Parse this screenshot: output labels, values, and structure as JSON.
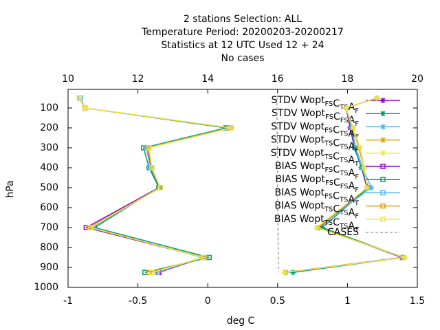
{
  "chart_data": {
    "type": "line",
    "title": [
      "2 stations Selection: ALL",
      "Temperature  Period: 20200203-20200217",
      "Statistics at 12 UTC  Used  12 + 24",
      "No cases"
    ],
    "xlabel": "deg C",
    "ylabel": "hPa",
    "xlim": [
      -1,
      1.5
    ],
    "xticks": [
      -1,
      -0.5,
      0,
      0.5,
      1,
      1.5
    ],
    "x2lim": [
      10,
      20
    ],
    "x2ticks": [
      10,
      12,
      14,
      16,
      18,
      20
    ],
    "ylim": [
      1000,
      0
    ],
    "yticks": [
      100,
      200,
      300,
      400,
      500,
      600,
      700,
      800,
      900,
      1000
    ],
    "levels": [
      50,
      100,
      200,
      300,
      400,
      500,
      700,
      850,
      925
    ],
    "series": [
      {
        "name": "STDV Wopt_{FS}C_{TS}A_{F}",
        "color": "#9400d3",
        "marker": "star",
        "values": [
          1.21,
          0.99,
          1.02,
          1.05,
          1.1,
          1.14,
          0.8,
          1.39,
          0.55
        ]
      },
      {
        "name": "STDV Wopt_{FS}C_{FS}A_{F}",
        "color": "#009e73",
        "marker": "star",
        "values": [
          1.21,
          0.99,
          1.03,
          1.05,
          1.1,
          1.15,
          0.82,
          1.4,
          0.61
        ]
      },
      {
        "name": "STDV Wopt_{FS}C_{TS}A_{T}",
        "color": "#56b4e9",
        "marker": "star",
        "values": [
          1.21,
          0.99,
          1.03,
          1.06,
          1.11,
          1.17,
          0.79,
          1.4,
          0.56
        ]
      },
      {
        "name": "STDV Wopt_{TS}C_{TS}A_{F}",
        "color": "#e69f00",
        "marker": "star",
        "values": [
          1.21,
          0.99,
          1.04,
          1.08,
          1.12,
          1.14,
          0.79,
          1.41,
          0.55
        ]
      },
      {
        "name": "STDV Wopt_{TS}C_{TS}A_{T}",
        "color": "#f0e442",
        "marker": "star",
        "values": [
          1.21,
          0.99,
          1.04,
          1.09,
          1.12,
          1.14,
          0.78,
          1.41,
          0.55
        ]
      },
      {
        "name": "BIAS Wopt_{FS}C_{TS}A_{F}",
        "color": "#9400d3",
        "marker": "square",
        "values": [
          -0.92,
          -0.88,
          0.14,
          -0.43,
          -0.41,
          -0.35,
          -0.87,
          -0.03,
          -0.35
        ]
      },
      {
        "name": "BIAS Wopt_{FS}C_{FS}A_{F}",
        "color": "#009e73",
        "marker": "square",
        "values": [
          -0.92,
          -0.88,
          0.13,
          -0.46,
          -0.42,
          -0.35,
          -0.81,
          0.01,
          -0.45
        ]
      },
      {
        "name": "BIAS Wopt_{FS}C_{TS}A_{T}",
        "color": "#56b4e9",
        "marker": "square",
        "values": [
          -0.91,
          -0.88,
          0.15,
          -0.44,
          -0.41,
          -0.34,
          -0.83,
          -0.04,
          -0.36
        ]
      },
      {
        "name": "BIAS Wopt_{TS}C_{TS}A_{F}",
        "color": "#e69f00",
        "marker": "square",
        "values": [
          -0.92,
          -0.88,
          0.16,
          -0.43,
          -0.4,
          -0.34,
          -0.85,
          -0.02,
          -0.42
        ]
      },
      {
        "name": "BIAS Wopt_{TS}C_{TS}A_{T}",
        "color": "#f0e442",
        "marker": "square",
        "values": [
          -0.92,
          -0.88,
          0.17,
          -0.42,
          -0.4,
          -0.34,
          -0.84,
          -0.03,
          -0.4
        ]
      },
      {
        "name": "CASES",
        "color": "#a0a0a0",
        "marker": "none",
        "dashed": true,
        "axis": "x2",
        "values": [
          15.98,
          15.98,
          15.99,
          15.99,
          16.0,
          16.0,
          16.01,
          16.02,
          16.03
        ]
      }
    ]
  }
}
